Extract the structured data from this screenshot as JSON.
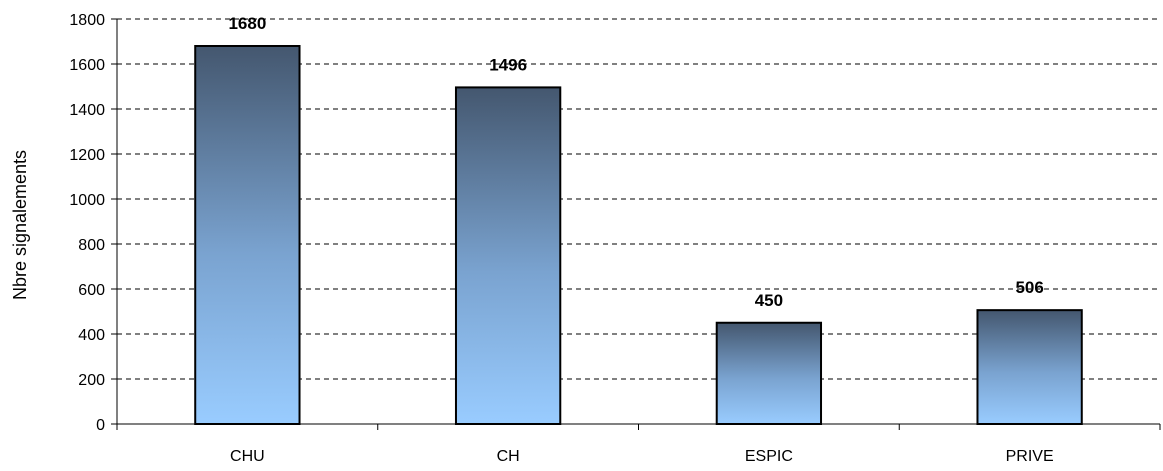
{
  "chart_data": {
    "type": "bar",
    "title": "",
    "xlabel": "",
    "ylabel": "Nbre signalements",
    "categories": [
      "CHU",
      "CH",
      "ESPIC",
      "PRIVE"
    ],
    "values": [
      1680,
      1496,
      450,
      506
    ],
    "data_labels": [
      "1680",
      "1496",
      "450",
      "506"
    ],
    "ylim": [
      0,
      1800
    ],
    "yticks": [
      0,
      200,
      400,
      600,
      800,
      1000,
      1200,
      1400,
      1600,
      1800
    ],
    "grid": true,
    "legend": "none",
    "colors": {
      "bar_top": "#44576f",
      "bar_mid": "#7aa3d0",
      "bar_bottom": "#99ccff",
      "outline": "#000000"
    }
  }
}
